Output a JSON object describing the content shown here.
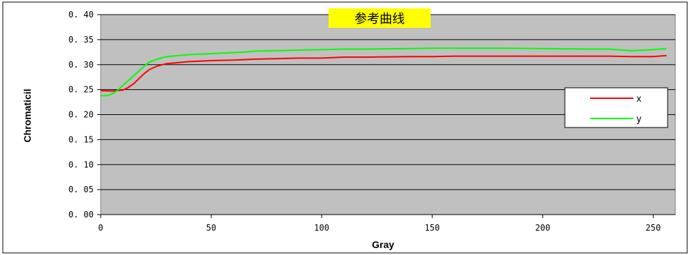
{
  "chart_data": {
    "type": "line",
    "title": "参考曲线",
    "xlabel": "Gray",
    "ylabel": "Chromaticil",
    "xlim": [
      0,
      260
    ],
    "ylim": [
      0,
      0.4
    ],
    "xticks": [
      0,
      50,
      100,
      150,
      200,
      250
    ],
    "yticks": [
      "0. 00",
      "0. 05",
      "0. 10",
      "0. 15",
      "0. 20",
      "0. 25",
      "0. 30",
      "0. 35",
      "0. 40"
    ],
    "ytick_values": [
      0,
      0.05,
      0.1,
      0.15,
      0.2,
      0.25,
      0.3,
      0.35,
      0.4
    ],
    "grid": "horizontal",
    "legend_position": "right",
    "plot_background": "#c0c0c0",
    "title_background": "#ffff00",
    "series": [
      {
        "name": "x",
        "color": "#ff0000",
        "x": [
          0,
          5,
          10,
          12,
          15,
          18,
          20,
          22,
          25,
          28,
          30,
          35,
          40,
          45,
          50,
          60,
          70,
          80,
          90,
          100,
          110,
          120,
          140,
          150,
          160,
          180,
          200,
          220,
          230,
          240,
          250,
          256
        ],
        "y": [
          0.248,
          0.247,
          0.249,
          0.253,
          0.262,
          0.275,
          0.283,
          0.29,
          0.296,
          0.3,
          0.302,
          0.304,
          0.306,
          0.307,
          0.308,
          0.309,
          0.311,
          0.312,
          0.313,
          0.313,
          0.315,
          0.315,
          0.316,
          0.316,
          0.317,
          0.317,
          0.317,
          0.317,
          0.317,
          0.316,
          0.316,
          0.318
        ]
      },
      {
        "name": "y",
        "color": "#00ff00",
        "x": [
          0,
          3,
          6,
          8,
          10,
          12,
          15,
          18,
          20,
          22,
          25,
          28,
          30,
          35,
          40,
          45,
          50,
          55,
          60,
          65,
          70,
          80,
          90,
          100,
          110,
          120,
          140,
          150,
          160,
          180,
          200,
          220,
          230,
          240,
          250,
          256
        ],
        "y": [
          0.238,
          0.238,
          0.243,
          0.25,
          0.258,
          0.266,
          0.278,
          0.29,
          0.298,
          0.305,
          0.31,
          0.314,
          0.316,
          0.318,
          0.32,
          0.321,
          0.322,
          0.323,
          0.324,
          0.325,
          0.327,
          0.328,
          0.329,
          0.33,
          0.331,
          0.331,
          0.332,
          0.333,
          0.333,
          0.333,
          0.332,
          0.331,
          0.331,
          0.328,
          0.33,
          0.332
        ]
      }
    ]
  }
}
